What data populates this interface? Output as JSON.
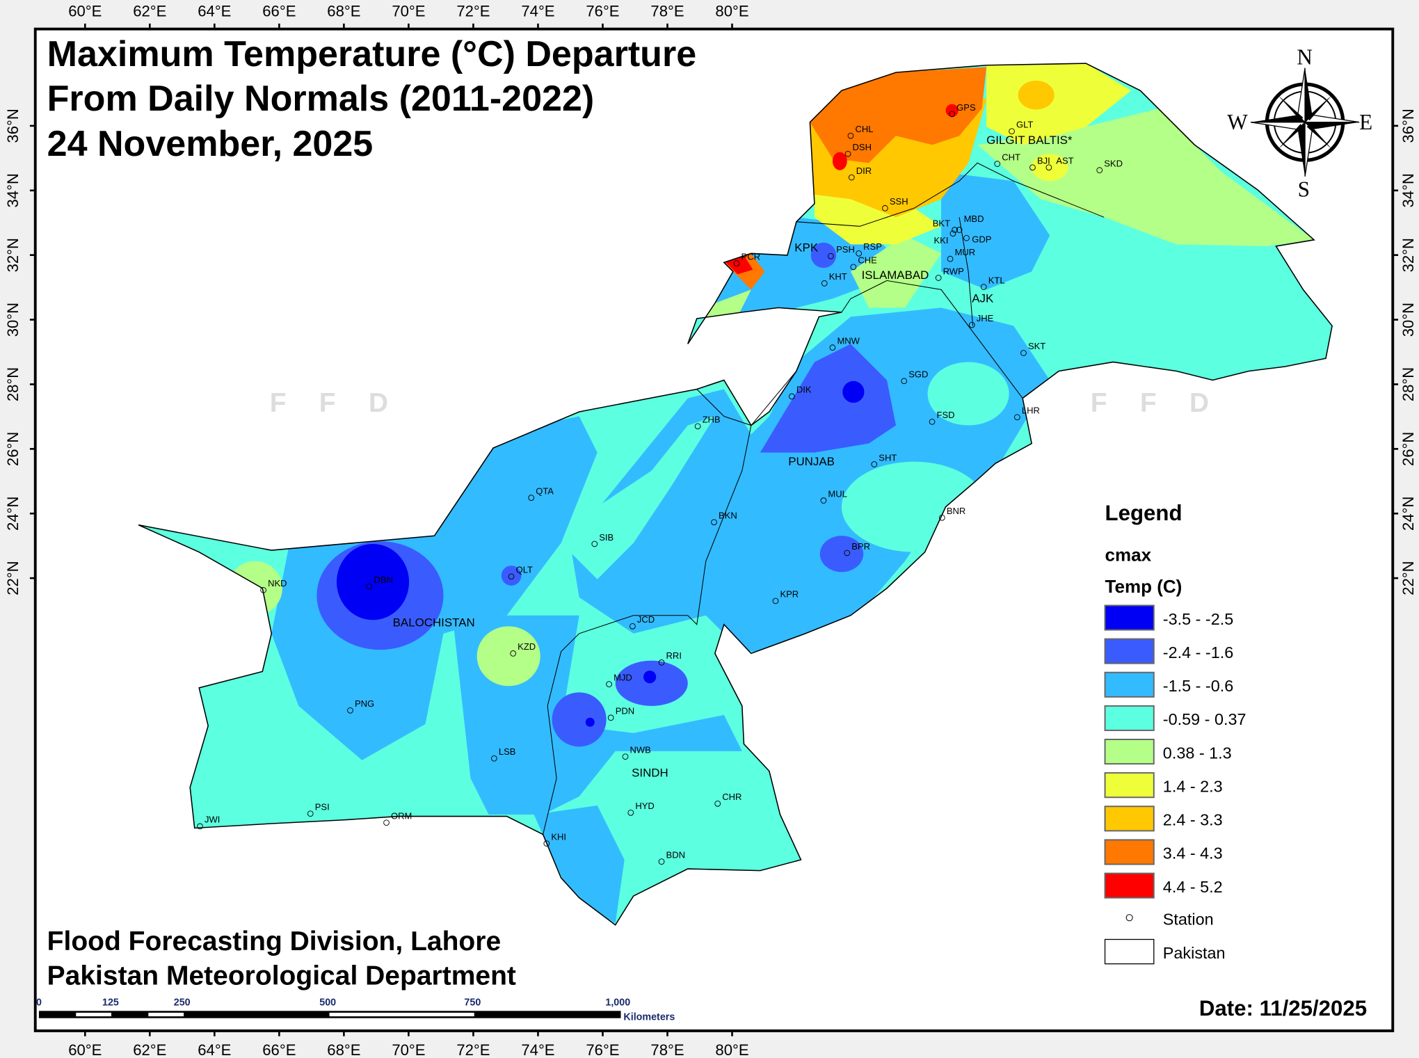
{
  "title": {
    "line1": "Maximum Temperature (°C) Departure",
    "line2": "From Daily Normals (2011-2022)",
    "line3": "24 November, 2025"
  },
  "credits": {
    "line1": "Flood Forecasting Division, Lahore",
    "line2": "Pakistan Meteorological Department"
  },
  "date_label": "Date: 11/25/2025",
  "watermark": "F F D",
  "longitude_ticks": [
    "60°E",
    "62°E",
    "64°E",
    "66°E",
    "68°E",
    "70°E",
    "72°E",
    "74°E",
    "76°E",
    "78°E",
    "80°E"
  ],
  "latitude_ticks": [
    "36°N",
    "34°N",
    "32°N",
    "30°N",
    "28°N",
    "26°N",
    "24°N",
    "22°N"
  ],
  "compass": {
    "n": "N",
    "s": "S",
    "e": "E",
    "w": "W"
  },
  "scale_bar": {
    "ticks": [
      "0",
      "125",
      "250",
      "500",
      "750",
      "1,000"
    ],
    "unit": "Kilometers"
  },
  "legend": {
    "title": "Legend",
    "layer": "cmax",
    "field": "Temp (C)",
    "classes": [
      {
        "label": "-3.5 - -2.5",
        "color": "#0000f5"
      },
      {
        "label": "-2.4 - -1.6",
        "color": "#3a5cff"
      },
      {
        "label": "-1.5 - -0.6",
        "color": "#33bbff"
      },
      {
        "label": "-0.59 - 0.37",
        "color": "#5cffe0"
      },
      {
        "label": "0.38 - 1.3",
        "color": "#b4ff88"
      },
      {
        "label": "1.4 - 2.3",
        "color": "#eeff3a"
      },
      {
        "label": "2.4 - 3.3",
        "color": "#ffc800"
      },
      {
        "label": "3.4 - 4.3",
        "color": "#ff7800"
      },
      {
        "label": "4.4 - 5.2",
        "color": "#ff0000"
      }
    ],
    "station_label": "Station",
    "boundary_label": "Pakistan"
  },
  "provinces": [
    "GILGIT BALTIS*",
    "KPK",
    "ISLAMABAD",
    "AJK",
    "PUNJAB",
    "BALOCHISTAN",
    "SINDH"
  ],
  "stations": [
    "GPS",
    "GLT",
    "CHL",
    "DSH",
    "DIR",
    "CHT",
    "BJI",
    "AST",
    "SKD",
    "SSH",
    "BKT",
    "MBD",
    "KKI",
    "GDP",
    "PSH",
    "RSP",
    "MUR",
    "PCR",
    "CHE",
    "KHT",
    "RWP",
    "KTL",
    "JHE",
    "SKT",
    "MNW",
    "SGD",
    "DIK",
    "LHR",
    "FSD",
    "ZHB",
    "SHT",
    "QTA",
    "MUL",
    "BKN",
    "BNR",
    "SIB",
    "BPR",
    "NKD",
    "DBN",
    "QLT",
    "KPR",
    "JCD",
    "KZD",
    "RRI",
    "MJD",
    "PNG",
    "PDN",
    "LSB",
    "NWB",
    "CHR",
    "HYD",
    "PSI",
    "JWI",
    "ORM",
    "KHI",
    "BDN"
  ]
}
